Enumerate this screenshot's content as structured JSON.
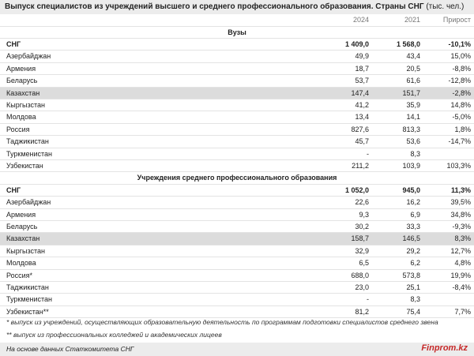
{
  "title": {
    "main": "Выпуск специалистов из учреждений высшего и среднего профессионального образования. Страны СНГ",
    "unit": "(тыс. чел.)"
  },
  "columns": [
    "2024",
    "2021",
    "Прирост"
  ],
  "sections": [
    {
      "title": "Вузы",
      "rows": [
        [
          "СНГ",
          "1 409,0",
          "1 568,0",
          "-10,1%"
        ],
        [
          "Азербайджан",
          "49,9",
          "43,4",
          "15,0%"
        ],
        [
          "Армения",
          "18,7",
          "20,5",
          "-8,8%"
        ],
        [
          "Беларусь",
          "53,7",
          "61,6",
          "-12,8%"
        ],
        [
          "Казахстан",
          "147,4",
          "151,7",
          "-2,8%"
        ],
        [
          "Кыргызстан",
          "41,2",
          "35,9",
          "14,8%"
        ],
        [
          "Молдова",
          "13,4",
          "14,1",
          "-5,0%"
        ],
        [
          "Россия",
          "827,6",
          "813,3",
          "1,8%"
        ],
        [
          "Таджикистан",
          "45,7",
          "53,6",
          "-14,7%"
        ],
        [
          "Туркменистан",
          "-",
          "8,3",
          ""
        ],
        [
          "Узбекистан",
          "211,2",
          "103,9",
          "103,3%"
        ]
      ]
    },
    {
      "title": "Учреждения среднего профессионального образования",
      "rows": [
        [
          "СНГ",
          "1 052,0",
          "945,0",
          "11,3%"
        ],
        [
          "Азербайджан",
          "22,6",
          "16,2",
          "39,5%"
        ],
        [
          "Армения",
          "9,3",
          "6,9",
          "34,8%"
        ],
        [
          "Беларусь",
          "30,2",
          "33,3",
          "-9,3%"
        ],
        [
          "Казахстан",
          "158,7",
          "146,5",
          "8,3%"
        ],
        [
          "Кыргызстан",
          "32,9",
          "29,2",
          "12,7%"
        ],
        [
          "Молдова",
          "6,5",
          "6,2",
          "4,8%"
        ],
        [
          "Россия*",
          "688,0",
          "573,8",
          "19,9%"
        ],
        [
          "Таджикистан",
          "23,0",
          "25,1",
          "-8,4%"
        ],
        [
          "Туркменистан",
          "-",
          "8,3",
          ""
        ],
        [
          "Узбекистан**",
          "81,2",
          "75,4",
          "7,7%"
        ]
      ]
    }
  ],
  "footnotes": [
    "* выпуск из учреждений, осуществляющих образовательную деятельность по программам подготовки специалистов среднего звена",
    "** выпуск из профессиональных колледжей и академических лицеев"
  ],
  "source": "На основе данных Статкомитета СНГ",
  "brand": "Finprom.kz"
}
